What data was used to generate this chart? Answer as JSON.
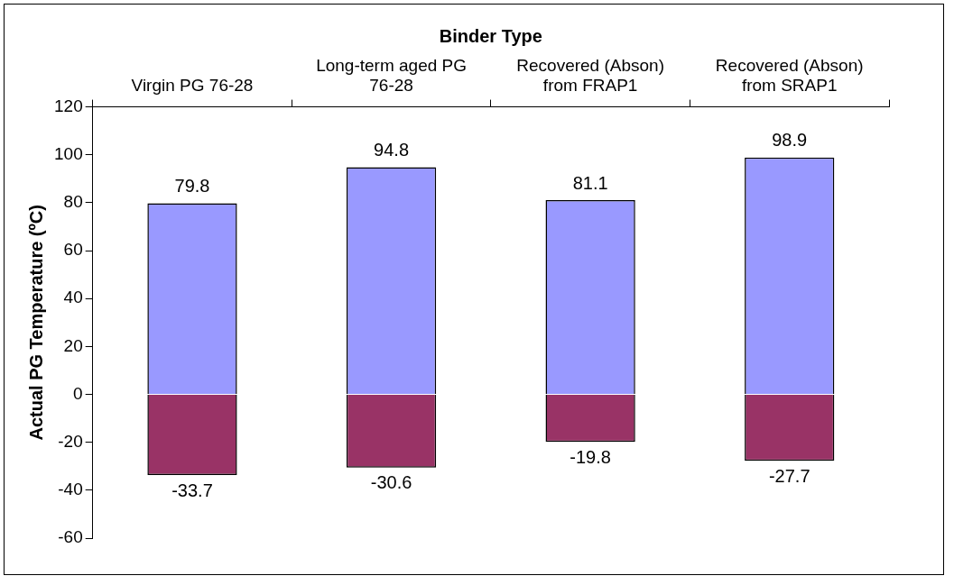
{
  "chart_data": {
    "type": "bar",
    "xlabel": "Binder Type",
    "ylabel": "Actual PG Temperature (ºC)",
    "categories": [
      "Virgin PG 76-28",
      "Long-term aged PG 76-28",
      "Recovered (Abson) from FRAP1",
      "Recovered (Abson) from SRAP1"
    ],
    "series": [
      {
        "color": "#9999ff",
        "values": [
          79.8,
          94.8,
          81.1,
          98.9
        ]
      },
      {
        "color": "#993366",
        "values": [
          -33.7,
          -30.6,
          -19.8,
          -27.7
        ]
      }
    ],
    "stacked": true,
    "ylim": [
      -60,
      120
    ],
    "yticks": [
      -60,
      -40,
      -20,
      0,
      20,
      40,
      60,
      80,
      100,
      120
    ],
    "grid": false,
    "legend": false,
    "data_labels": true
  }
}
